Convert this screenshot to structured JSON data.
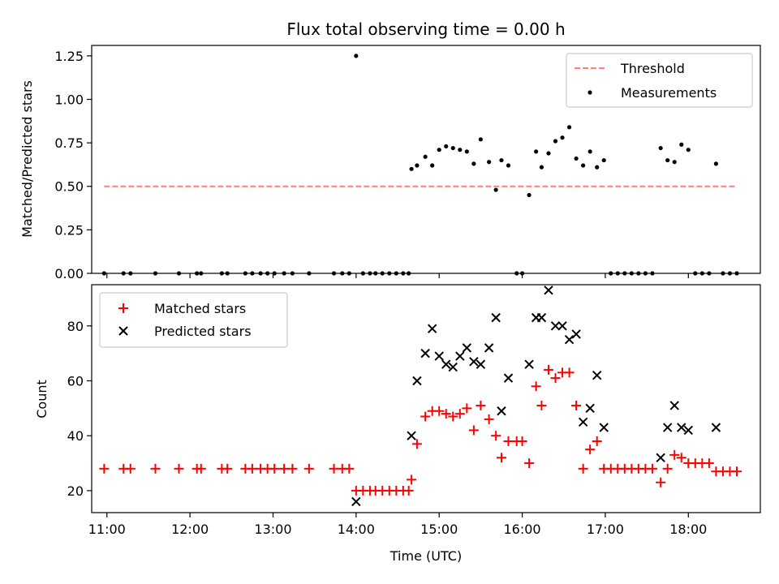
{
  "chart_data": [
    {
      "type": "scatter",
      "title": "Flux total observing time = 0.00 h",
      "xlabel": "",
      "ylabel": "Matched/Predicted stars",
      "xlim": [
        "10:49",
        "18:52"
      ],
      "ylim": [
        0,
        1.31
      ],
      "yticks": [
        0.0,
        0.25,
        0.5,
        0.75,
        1.0,
        1.25
      ],
      "ytick_labels": [
        "0.00",
        "0.25",
        "0.50",
        "0.75",
        "1.00",
        "1.25"
      ],
      "xticks": [
        "11:00",
        "12:00",
        "13:00",
        "14:00",
        "15:00",
        "16:00",
        "17:00",
        "18:00"
      ],
      "legend": {
        "location": "upper right",
        "entries": [
          "Threshold",
          "Measurements"
        ]
      },
      "threshold": {
        "name": "Threshold",
        "color": "#ff7f7f",
        "style": "dashed",
        "y": 0.5,
        "x_start": "10:58",
        "x_end": "18:35"
      },
      "series": [
        {
          "name": "Measurements",
          "color": "#000000",
          "marker": "dot",
          "points": [
            [
              "10:58",
              0.0
            ],
            [
              "11:12",
              0.0
            ],
            [
              "11:17",
              0.0
            ],
            [
              "11:35",
              0.0
            ],
            [
              "11:52",
              0.0
            ],
            [
              "12:05",
              0.0
            ],
            [
              "12:08",
              0.0
            ],
            [
              "12:23",
              0.0
            ],
            [
              "12:27",
              0.0
            ],
            [
              "12:40",
              0.0
            ],
            [
              "12:45",
              0.0
            ],
            [
              "12:51",
              0.0
            ],
            [
              "12:56",
              0.0
            ],
            [
              "13:01",
              0.0
            ],
            [
              "13:08",
              0.0
            ],
            [
              "13:14",
              0.0
            ],
            [
              "13:26",
              0.0
            ],
            [
              "13:44",
              0.0
            ],
            [
              "13:50",
              0.0
            ],
            [
              "13:55",
              0.0
            ],
            [
              "14:00",
              1.25
            ],
            [
              "14:05",
              0.0
            ],
            [
              "14:10",
              0.0
            ],
            [
              "14:14",
              0.0
            ],
            [
              "14:19",
              0.0
            ],
            [
              "14:24",
              0.0
            ],
            [
              "14:29",
              0.0
            ],
            [
              "14:34",
              0.0
            ],
            [
              "14:38",
              0.0
            ],
            [
              "14:40",
              0.6
            ],
            [
              "14:44",
              0.62
            ],
            [
              "14:50",
              0.67
            ],
            [
              "14:55",
              0.62
            ],
            [
              "15:00",
              0.71
            ],
            [
              "15:05",
              0.73
            ],
            [
              "15:10",
              0.72
            ],
            [
              "15:15",
              0.71
            ],
            [
              "15:20",
              0.7
            ],
            [
              "15:25",
              0.63
            ],
            [
              "15:30",
              0.77
            ],
            [
              "15:36",
              0.64
            ],
            [
              "15:41",
              0.48
            ],
            [
              "15:45",
              0.65
            ],
            [
              "15:50",
              0.62
            ],
            [
              "15:56",
              0.0
            ],
            [
              "16:00",
              0.0
            ],
            [
              "16:05",
              0.45
            ],
            [
              "16:10",
              0.7
            ],
            [
              "16:14",
              0.61
            ],
            [
              "16:19",
              0.69
            ],
            [
              "16:24",
              0.76
            ],
            [
              "16:29",
              0.78
            ],
            [
              "16:34",
              0.84
            ],
            [
              "16:39",
              0.66
            ],
            [
              "16:44",
              0.62
            ],
            [
              "16:49",
              0.7
            ],
            [
              "16:54",
              0.61
            ],
            [
              "16:59",
              0.65
            ],
            [
              "17:04",
              0.0
            ],
            [
              "17:09",
              0.0
            ],
            [
              "17:14",
              0.0
            ],
            [
              "17:19",
              0.0
            ],
            [
              "17:24",
              0.0
            ],
            [
              "17:29",
              0.0
            ],
            [
              "17:34",
              0.0
            ],
            [
              "17:40",
              0.72
            ],
            [
              "17:45",
              0.65
            ],
            [
              "17:50",
              0.64
            ],
            [
              "17:55",
              0.74
            ],
            [
              "18:00",
              0.71
            ],
            [
              "18:05",
              0.0
            ],
            [
              "18:10",
              0.0
            ],
            [
              "18:15",
              0.0
            ],
            [
              "18:20",
              0.63
            ],
            [
              "18:25",
              0.0
            ],
            [
              "18:30",
              0.0
            ],
            [
              "18:35",
              0.0
            ]
          ]
        }
      ]
    },
    {
      "type": "scatter",
      "title": "",
      "xlabel": "Time (UTC)",
      "ylabel": "Count",
      "xlim": [
        "10:49",
        "18:52"
      ],
      "ylim": [
        12,
        95
      ],
      "yticks": [
        20,
        40,
        60,
        80
      ],
      "ytick_labels": [
        "20",
        "40",
        "60",
        "80"
      ],
      "xticks": [
        "11:00",
        "12:00",
        "13:00",
        "14:00",
        "15:00",
        "16:00",
        "17:00",
        "18:00"
      ],
      "legend": {
        "location": "upper left",
        "entries": [
          "Matched stars",
          "Predicted stars"
        ]
      },
      "series": [
        {
          "name": "Matched stars",
          "color": "#ff0000",
          "marker": "plus",
          "points": [
            [
              "10:58",
              28
            ],
            [
              "11:12",
              28
            ],
            [
              "11:17",
              28
            ],
            [
              "11:35",
              28
            ],
            [
              "11:52",
              28
            ],
            [
              "12:05",
              28
            ],
            [
              "12:08",
              28
            ],
            [
              "12:23",
              28
            ],
            [
              "12:27",
              28
            ],
            [
              "12:40",
              28
            ],
            [
              "12:45",
              28
            ],
            [
              "12:51",
              28
            ],
            [
              "12:56",
              28
            ],
            [
              "13:01",
              28
            ],
            [
              "13:08",
              28
            ],
            [
              "13:14",
              28
            ],
            [
              "13:26",
              28
            ],
            [
              "13:44",
              28
            ],
            [
              "13:50",
              28
            ],
            [
              "13:55",
              28
            ],
            [
              "14:00",
              20
            ],
            [
              "14:05",
              20
            ],
            [
              "14:10",
              20
            ],
            [
              "14:14",
              20
            ],
            [
              "14:19",
              20
            ],
            [
              "14:24",
              20
            ],
            [
              "14:29",
              20
            ],
            [
              "14:34",
              20
            ],
            [
              "14:38",
              20
            ],
            [
              "14:40",
              24
            ],
            [
              "14:44",
              37
            ],
            [
              "14:50",
              47
            ],
            [
              "14:55",
              49
            ],
            [
              "15:00",
              49
            ],
            [
              "15:05",
              48
            ],
            [
              "15:10",
              47
            ],
            [
              "15:15",
              48
            ],
            [
              "15:20",
              50
            ],
            [
              "15:25",
              42
            ],
            [
              "15:30",
              51
            ],
            [
              "15:36",
              46
            ],
            [
              "15:41",
              40
            ],
            [
              "15:45",
              32
            ],
            [
              "15:50",
              38
            ],
            [
              "15:56",
              38
            ],
            [
              "16:00",
              38
            ],
            [
              "16:05",
              30
            ],
            [
              "16:10",
              58
            ],
            [
              "16:14",
              51
            ],
            [
              "16:19",
              64
            ],
            [
              "16:24",
              61
            ],
            [
              "16:29",
              63
            ],
            [
              "16:34",
              63
            ],
            [
              "16:39",
              51
            ],
            [
              "16:44",
              28
            ],
            [
              "16:49",
              35
            ],
            [
              "16:54",
              38
            ],
            [
              "16:59",
              28
            ],
            [
              "17:04",
              28
            ],
            [
              "17:09",
              28
            ],
            [
              "17:14",
              28
            ],
            [
              "17:19",
              28
            ],
            [
              "17:24",
              28
            ],
            [
              "17:29",
              28
            ],
            [
              "17:34",
              28
            ],
            [
              "17:40",
              23
            ],
            [
              "17:45",
              28
            ],
            [
              "17:50",
              33
            ],
            [
              "17:55",
              32
            ],
            [
              "18:00",
              30
            ],
            [
              "18:05",
              30
            ],
            [
              "18:10",
              30
            ],
            [
              "18:15",
              30
            ],
            [
              "18:20",
              27
            ],
            [
              "18:25",
              27
            ],
            [
              "18:30",
              27
            ],
            [
              "18:35",
              27
            ]
          ]
        },
        {
          "name": "Predicted stars",
          "color": "#000000",
          "marker": "x",
          "points": [
            [
              "14:00",
              16
            ],
            [
              "14:40",
              40
            ],
            [
              "14:44",
              60
            ],
            [
              "14:50",
              70
            ],
            [
              "14:55",
              79
            ],
            [
              "15:00",
              69
            ],
            [
              "15:05",
              66
            ],
            [
              "15:10",
              65
            ],
            [
              "15:15",
              69
            ],
            [
              "15:20",
              72
            ],
            [
              "15:25",
              67
            ],
            [
              "15:30",
              66
            ],
            [
              "15:36",
              72
            ],
            [
              "15:41",
              83
            ],
            [
              "15:45",
              49
            ],
            [
              "15:50",
              61
            ],
            [
              "16:05",
              66
            ],
            [
              "16:10",
              83
            ],
            [
              "16:14",
              83
            ],
            [
              "16:19",
              93
            ],
            [
              "16:24",
              80
            ],
            [
              "16:29",
              80
            ],
            [
              "16:34",
              75
            ],
            [
              "16:39",
              77
            ],
            [
              "16:44",
              45
            ],
            [
              "16:49",
              50
            ],
            [
              "16:54",
              62
            ],
            [
              "16:59",
              43
            ],
            [
              "17:40",
              32
            ],
            [
              "17:45",
              43
            ],
            [
              "17:50",
              51
            ],
            [
              "17:55",
              43
            ],
            [
              "18:00",
              42
            ],
            [
              "18:20",
              43
            ]
          ]
        }
      ]
    }
  ]
}
